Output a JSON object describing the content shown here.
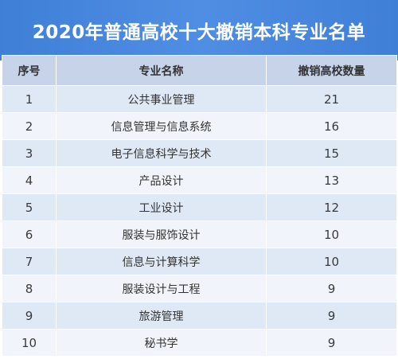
{
  "title": "2020年普通高校十大撤销本科专业名单",
  "headers": {
    "index": "序号",
    "major": "专业名称",
    "count": "撤销高校数量"
  },
  "rows": [
    {
      "index": "1",
      "major": "公共事业管理",
      "count": "21"
    },
    {
      "index": "2",
      "major": "信息管理与信息系统",
      "count": "16"
    },
    {
      "index": "3",
      "major": "电子信息科学与技术",
      "count": "15"
    },
    {
      "index": "4",
      "major": "产品设计",
      "count": "13"
    },
    {
      "index": "5",
      "major": "工业设计",
      "count": "12"
    },
    {
      "index": "6",
      "major": "服装与服饰设计",
      "count": "10"
    },
    {
      "index": "7",
      "major": "信息与计算科学",
      "count": "10"
    },
    {
      "index": "8",
      "major": "服装设计与工程",
      "count": "9"
    },
    {
      "index": "9",
      "major": "旅游管理",
      "count": "9"
    },
    {
      "index": "10",
      "major": "秘书学",
      "count": "9"
    }
  ],
  "colors": {
    "title_background": "#3f7fd6",
    "title_text": "#ffffff",
    "header_background": "#c6d3e8",
    "row_odd": "#dfe8f5",
    "row_even": "#f1f5fb"
  }
}
